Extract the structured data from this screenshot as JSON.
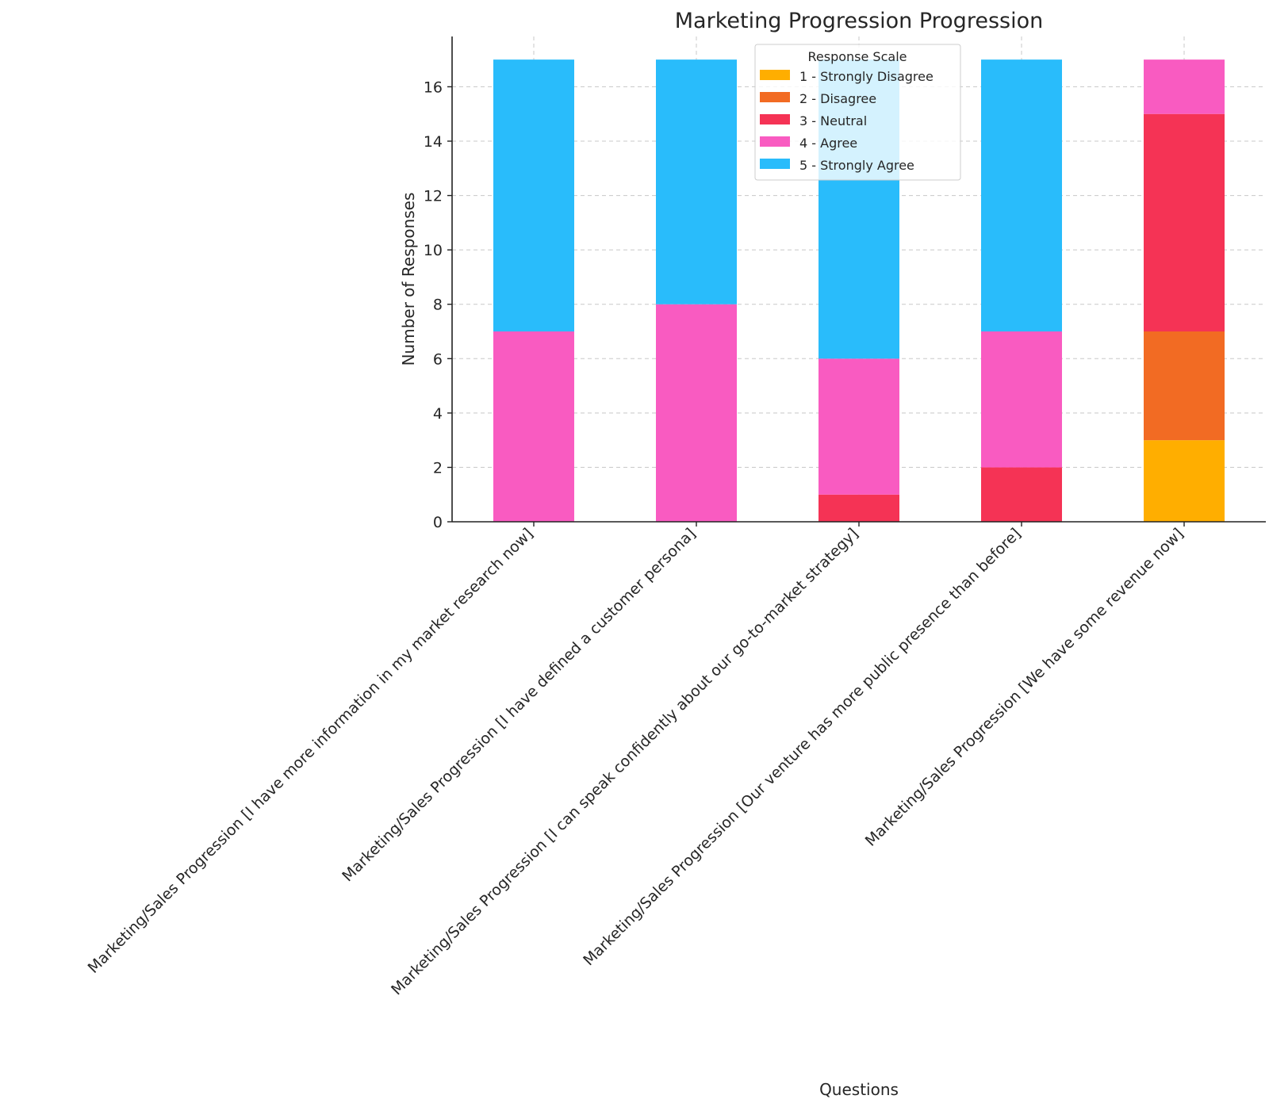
{
  "chart_data": {
    "type": "bar",
    "stacked": true,
    "title": "Marketing Progression Progression",
    "xlabel": "Questions",
    "ylabel": "Number of Responses",
    "ylim": [
      0,
      17.85
    ],
    "yticks": [
      0,
      2,
      4,
      6,
      8,
      10,
      12,
      14,
      16
    ],
    "grid": true,
    "legend_title": "Response Scale",
    "legend_position": "top-center",
    "categories": [
      "Marketing/Sales Progression [I have more information in my market research now]",
      "Marketing/Sales Progression [I have defined a customer persona]",
      "Marketing/Sales Progression [I can speak confidently about our go-to-market strategy]",
      "Marketing/Sales Progression [Our venture has more public presence than before]",
      "Marketing/Sales Progression [We have some revenue now]"
    ],
    "series": [
      {
        "name": "1 - Strongly Disagree",
        "color": "#FFAE00",
        "values": [
          0,
          0,
          0,
          0,
          3
        ]
      },
      {
        "name": "2 - Disagree",
        "color": "#F26B23",
        "values": [
          0,
          0,
          0,
          0,
          4
        ]
      },
      {
        "name": "3 - Neutral",
        "color": "#F53355",
        "values": [
          0,
          0,
          1,
          2,
          8
        ]
      },
      {
        "name": "4 - Agree",
        "color": "#F95BC1",
        "values": [
          7,
          8,
          5,
          5,
          2
        ]
      },
      {
        "name": "5 - Strongly Agree",
        "color": "#29BCFB",
        "values": [
          10,
          9,
          11,
          10,
          0
        ]
      }
    ]
  }
}
